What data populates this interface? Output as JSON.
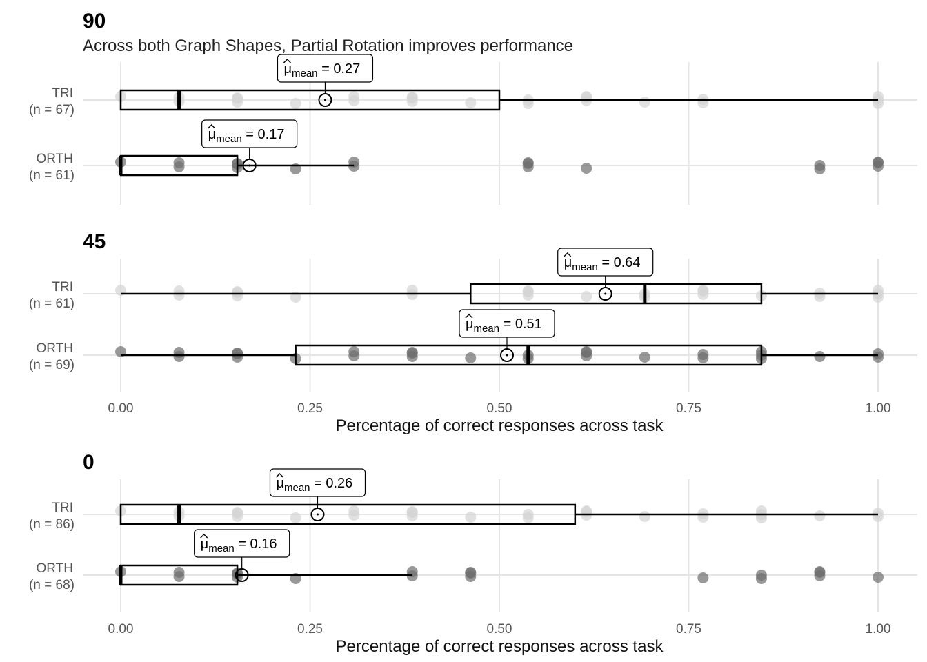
{
  "chart_data": [
    {
      "type": "boxplot",
      "title": "90",
      "subtitle": "Across both Graph Shapes, Partial Rotation improves performance",
      "xlabel": "",
      "xlim": [
        0,
        1
      ],
      "xticks": [
        "0.00",
        "0.25",
        "0.50",
        "0.75",
        "1.00"
      ],
      "show_xticks": false,
      "grid": true,
      "groups": [
        {
          "category": "TRI",
          "n_label": "(n = 67)",
          "color": "#d4d4d4",
          "box": {
            "min": 0.0,
            "q1": 0.0,
            "median": 0.077,
            "q3": 0.5,
            "max": 1.0
          },
          "mean": 0.27,
          "mean_label": "0.27",
          "points": [
            0,
            0.077,
            0.154,
            0.231,
            0.308,
            0.385,
            0.462,
            0.538,
            0.615,
            0.692,
            0.769,
            1.0
          ]
        },
        {
          "category": "ORTH",
          "n_label": "(n = 61)",
          "color": "#6e6e6e",
          "box": {
            "min": 0.0,
            "q1": 0.0,
            "median": 0.0,
            "q3": 0.154,
            "max": 0.308
          },
          "mean": 0.17,
          "mean_label": "0.17",
          "points": [
            0,
            0.077,
            0.154,
            0.231,
            0.308,
            0.538,
            0.615,
            0.923,
            1.0
          ]
        }
      ]
    },
    {
      "type": "boxplot",
      "title": "45",
      "xlabel": "Percentage of correct responses across task",
      "xlim": [
        0,
        1
      ],
      "xticks": [
        "0.00",
        "0.25",
        "0.50",
        "0.75",
        "1.00"
      ],
      "show_xticks": true,
      "grid": true,
      "groups": [
        {
          "category": "TRI",
          "n_label": "(n = 61)",
          "color": "#d4d4d4",
          "box": {
            "min": 0.0,
            "q1": 0.462,
            "median": 0.692,
            "q3": 0.846,
            "max": 1.0
          },
          "mean": 0.64,
          "mean_label": "0.64",
          "points": [
            0,
            0.077,
            0.154,
            0.231,
            0.385,
            0.538,
            0.615,
            0.692,
            0.769,
            0.846,
            0.923,
            1.0
          ]
        },
        {
          "category": "ORTH",
          "n_label": "(n = 69)",
          "color": "#6e6e6e",
          "box": {
            "min": 0.0,
            "q1": 0.231,
            "median": 0.538,
            "q3": 0.846,
            "max": 1.0
          },
          "mean": 0.51,
          "mean_label": "0.51",
          "points": [
            0,
            0.077,
            0.154,
            0.231,
            0.308,
            0.385,
            0.462,
            0.538,
            0.615,
            0.692,
            0.769,
            0.846,
            0.923,
            1.0
          ]
        }
      ]
    },
    {
      "type": "boxplot",
      "title": "0",
      "xlabel": "Percentage of correct responses across task",
      "xlim": [
        0,
        1
      ],
      "xticks": [
        "0.00",
        "0.25",
        "0.50",
        "0.75",
        "1.00"
      ],
      "show_xticks": true,
      "grid": true,
      "groups": [
        {
          "category": "TRI",
          "n_label": "(n = 86)",
          "color": "#d4d4d4",
          "box": {
            "min": 0.0,
            "q1": 0.0,
            "median": 0.077,
            "q3": 0.6,
            "max": 1.0
          },
          "mean": 0.26,
          "mean_label": "0.26",
          "points": [
            0,
            0.077,
            0.154,
            0.231,
            0.308,
            0.385,
            0.462,
            0.538,
            0.615,
            0.692,
            0.769,
            0.846,
            0.923,
            1.0
          ]
        },
        {
          "category": "ORTH",
          "n_label": "(n = 68)",
          "color": "#6e6e6e",
          "box": {
            "min": 0.0,
            "q1": 0.0,
            "median": 0.0,
            "q3": 0.154,
            "max": 0.385
          },
          "mean": 0.16,
          "mean_label": "0.16",
          "points": [
            0,
            0.077,
            0.154,
            0.231,
            0.385,
            0.462,
            0.769,
            0.846,
            0.923,
            1.0
          ]
        }
      ]
    }
  ],
  "annotation_text": {
    "mu_symbol": "μ",
    "mu_subscript": "mean",
    "equals": " = "
  }
}
